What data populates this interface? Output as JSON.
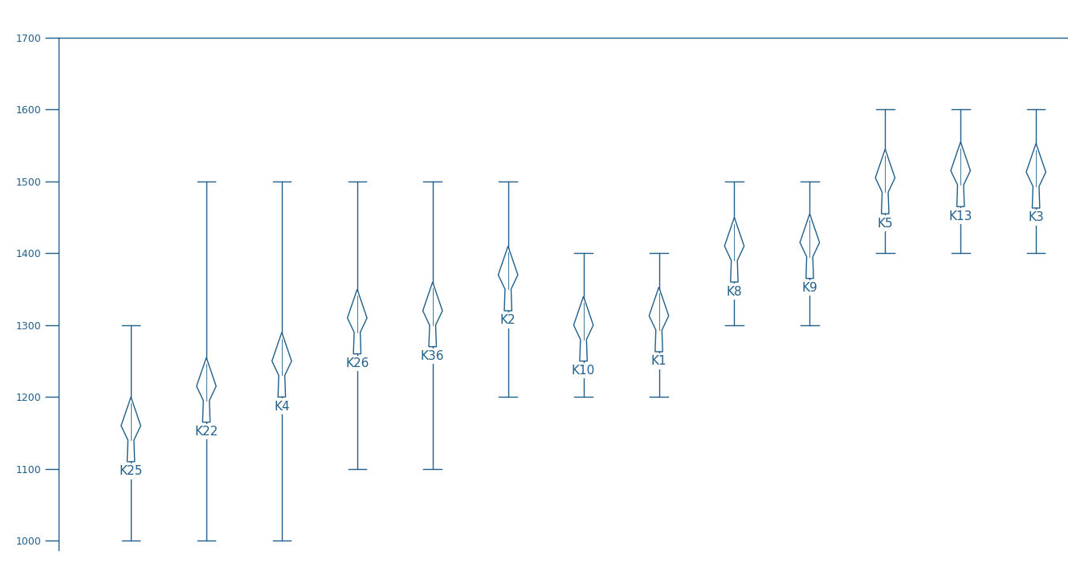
{
  "chart_data": {
    "type": "range",
    "categories": [
      "K25",
      "K22",
      "K4",
      "K26",
      "K36",
      "K2",
      "K10",
      "K1",
      "K8",
      "K9",
      "K5",
      "K13",
      "K3"
    ],
    "values": [
      1155,
      1210,
      1245,
      1305,
      1315,
      1365,
      1295,
      1308,
      1405,
      1410,
      1500,
      1510,
      1508
    ],
    "low": [
      1000,
      1000,
      1000,
      1100,
      1100,
      1200,
      1200,
      1200,
      1300,
      1300,
      1400,
      1400,
      1400
    ],
    "high": [
      1300,
      1500,
      1500,
      1500,
      1500,
      1500,
      1400,
      1400,
      1500,
      1500,
      1600,
      1600,
      1600
    ],
    "color": "#1f5f8b",
    "ylim": [
      987,
      1700
    ],
    "yticks": [
      1000,
      1100,
      1200,
      1300,
      1400,
      1500,
      1600,
      1700
    ],
    "grid": false,
    "tick_labels": "y"
  }
}
